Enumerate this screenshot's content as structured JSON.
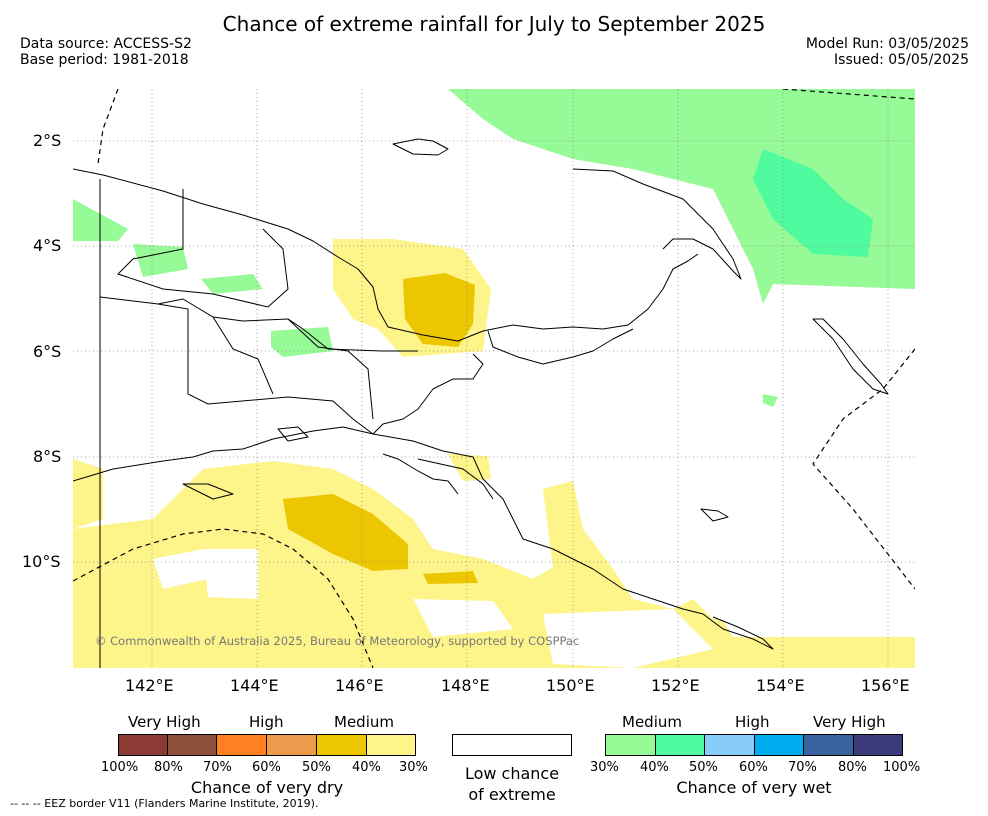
{
  "title": "Chance of extreme rainfall for July to September 2025",
  "meta": {
    "source": "Data source: ACCESS-S2",
    "base_period": "Base period: 1981-2018",
    "model_run": "Model Run: 03/05/2025",
    "issued": "Issued: 05/05/2025"
  },
  "axes": {
    "y_ticks": [
      "2°S",
      "4°S",
      "6°S",
      "8°S",
      "10°S"
    ],
    "x_ticks": [
      "142°E",
      "144°E",
      "146°E",
      "148°E",
      "150°E",
      "152°E",
      "154°E",
      "156°E"
    ],
    "lon_range": [
      140.5,
      156.5
    ],
    "lat_range": [
      -12,
      -1
    ]
  },
  "copyright": "© Commonwealth of Australia 2025, Bureau of Meteorology, supported by COSPPac",
  "legend": {
    "dry": {
      "levels": [
        "Very High",
        "High",
        "Medium"
      ],
      "percents": [
        "100%",
        "80%",
        "70%",
        "60%",
        "50%",
        "40%",
        "30%"
      ],
      "caption": "Chance of very dry",
      "colors": [
        "#8b3a34",
        "#8c4f3c",
        "#ff8020",
        "#ec9a4c",
        "#ecc600",
        "#fdf48a"
      ]
    },
    "low": {
      "caption_line1": "Low chance",
      "caption_line2": "of extreme"
    },
    "wet": {
      "levels": [
        "Medium",
        "High",
        "Very High"
      ],
      "percents": [
        "30%",
        "40%",
        "50%",
        "60%",
        "70%",
        "80%",
        "100%"
      ],
      "caption": "Chance of very wet",
      "colors": [
        "#96fa96",
        "#50fa9f",
        "#87ccfa",
        "#00aeef",
        "#3a64a0",
        "#3c3a78"
      ]
    }
  },
  "footer": "--  --  -- EEZ border V11 (Flanders Marine Institute, 2019)."
}
